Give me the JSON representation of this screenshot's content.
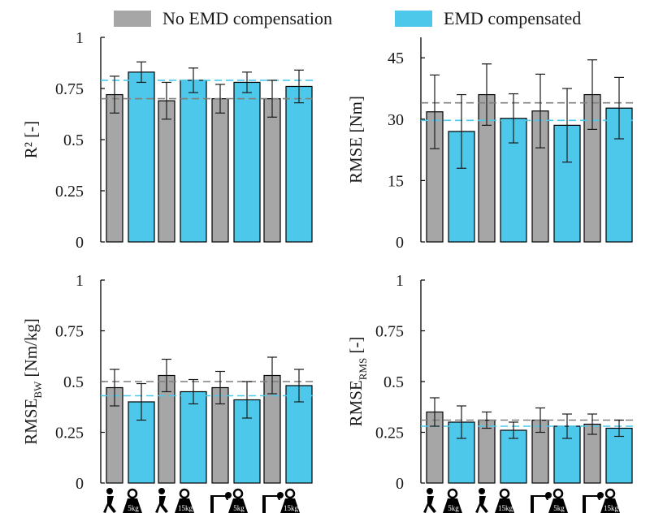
{
  "legend": {
    "items": [
      {
        "label": "No EMD compensation",
        "color": "#a6a6a6"
      },
      {
        "label": "EMD compensated",
        "color": "#4dc8eb"
      }
    ]
  },
  "colors": {
    "no_emd": "#a6a6a6",
    "emd": "#4dc8eb",
    "no_emd_mean_line": "#7f7f7f",
    "emd_mean_line": "#4dc8eb",
    "bar_edge": "#000000"
  },
  "condition_icons": [
    {
      "icon": "squat-figure-icon",
      "weight": "5kg"
    },
    {
      "icon": "squat-figure-icon",
      "weight": "15kg"
    },
    {
      "icon": "stoop-figure-icon",
      "weight": "5kg"
    },
    {
      "icon": "stoop-figure-icon",
      "weight": "15kg"
    }
  ],
  "chart_data": [
    {
      "type": "bar",
      "ylabel_main": "R² [-]",
      "ylabel_sub": "",
      "ylim": [
        0,
        1
      ],
      "yticks": [
        0,
        0.25,
        0.5,
        0.75,
        1
      ],
      "ytick_labels": [
        "0",
        "0.25",
        "0.5",
        "0.75",
        "1"
      ],
      "series": [
        {
          "values": [
            0.72,
            0.69,
            0.7,
            0.7
          ],
          "errors": [
            0.09,
            0.09,
            0.07,
            0.09
          ]
        },
        {
          "values": [
            0.83,
            0.79,
            0.78,
            0.76
          ],
          "errors": [
            0.05,
            0.06,
            0.05,
            0.08
          ]
        }
      ],
      "mean_lines": [
        0.7,
        0.79
      ]
    },
    {
      "type": "bar",
      "ylabel_main": "RMSE [Nm]",
      "ylabel_sub": "",
      "ylim": [
        0,
        50
      ],
      "yticks": [
        0,
        15,
        30,
        45
      ],
      "ytick_labels": [
        "0",
        "15",
        "30",
        "45"
      ],
      "series": [
        {
          "values": [
            31.8,
            36.0,
            32.0,
            36.0
          ],
          "errors": [
            9.0,
            7.5,
            9.0,
            8.5
          ]
        },
        {
          "values": [
            27.0,
            30.2,
            28.5,
            32.7
          ],
          "errors": [
            9.0,
            6.0,
            9.0,
            7.5
          ]
        }
      ],
      "mean_lines": [
        34.0,
        29.7
      ]
    },
    {
      "type": "bar",
      "ylabel_main": "RMSE",
      "ylabel_sub": "BW",
      "ylabel_suffix": " [Nm/kg]",
      "ylim": [
        0,
        1
      ],
      "yticks": [
        0,
        0.25,
        0.5,
        0.75,
        1
      ],
      "ytick_labels": [
        "0",
        "0.25",
        "0.5",
        "0.75",
        "1"
      ],
      "series": [
        {
          "values": [
            0.47,
            0.53,
            0.47,
            0.53
          ],
          "errors": [
            0.09,
            0.08,
            0.08,
            0.09
          ]
        },
        {
          "values": [
            0.4,
            0.45,
            0.41,
            0.48
          ],
          "errors": [
            0.09,
            0.06,
            0.09,
            0.08
          ]
        }
      ],
      "mean_lines": [
        0.5,
        0.43
      ]
    },
    {
      "type": "bar",
      "ylabel_main": "RMSE",
      "ylabel_sub": "RMS",
      "ylabel_suffix": " [-]",
      "ylim": [
        0,
        1
      ],
      "yticks": [
        0,
        0.25,
        0.5,
        0.75,
        1
      ],
      "ytick_labels": [
        "0",
        "0.25",
        "0.5",
        "0.75",
        "1"
      ],
      "series": [
        {
          "values": [
            0.35,
            0.31,
            0.31,
            0.29
          ],
          "errors": [
            0.07,
            0.04,
            0.06,
            0.05
          ]
        },
        {
          "values": [
            0.3,
            0.26,
            0.28,
            0.27
          ],
          "errors": [
            0.08,
            0.04,
            0.06,
            0.04
          ]
        }
      ],
      "mean_lines": [
        0.31,
        0.28
      ]
    }
  ]
}
